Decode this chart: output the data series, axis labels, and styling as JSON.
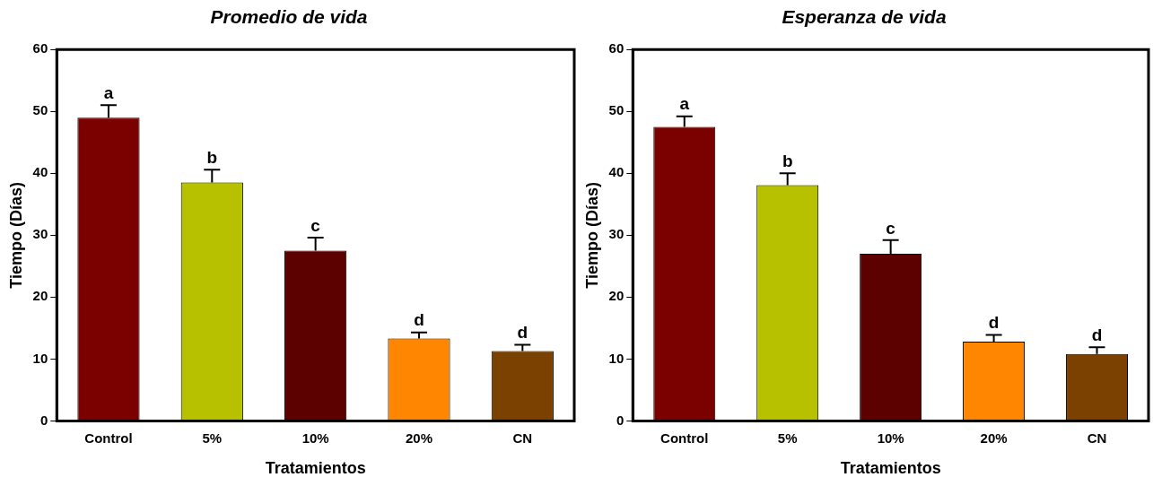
{
  "chart_data": [
    {
      "type": "bar",
      "title": "Promedio de vida",
      "xlabel": "Tratamientos",
      "ylabel": "Tiempo (Días)",
      "categories": [
        "Control",
        "5%",
        "10%",
        "20%",
        "CN"
      ],
      "values": [
        49,
        38.5,
        27.5,
        13.3,
        11.3
      ],
      "colors": [
        "#7b0000",
        "#b8c100",
        "#5c0000",
        "#ff8600",
        "#7a4100"
      ],
      "errors": [
        [
          49,
          51
        ],
        [
          38.5,
          40.6
        ],
        [
          27.5,
          29.6
        ],
        [
          13.3,
          14.3
        ],
        [
          11.3,
          12.3
        ]
      ],
      "ylim": [
        0,
        60
      ],
      "yticks": [
        0,
        10,
        20,
        30,
        40,
        50,
        60
      ],
      "grid": false,
      "legend": false,
      "annotations": [
        {
          "text": "a",
          "x": "Control",
          "y": 51
        },
        {
          "text": "b",
          "x": "5%",
          "y": 40.6
        },
        {
          "text": "c",
          "x": "10%",
          "y": 29.6
        },
        {
          "text": "d",
          "x": "20%",
          "y": 14.3
        },
        {
          "text": "d",
          "x": "CN",
          "y": 12.3
        }
      ]
    },
    {
      "type": "bar",
      "title": "Esperanza de vida",
      "xlabel": "Tratamientos",
      "ylabel": "Tiempo (Días)",
      "categories": [
        "Control",
        "5%",
        "10%",
        "20%",
        "CN"
      ],
      "values": [
        47.5,
        38.1,
        27,
        12.8,
        10.8
      ],
      "colors": [
        "#7b0000",
        "#b8c100",
        "#5c0000",
        "#ff8600",
        "#7a4100"
      ],
      "errors": [
        [
          47.5,
          49.2
        ],
        [
          38.1,
          40
        ],
        [
          27,
          29.2
        ],
        [
          12.8,
          13.9
        ],
        [
          10.8,
          11.9
        ]
      ],
      "ylim": [
        0,
        60
      ],
      "yticks": [
        0,
        10,
        20,
        30,
        40,
        50,
        60
      ],
      "grid": false,
      "legend": false,
      "annotations": [
        {
          "text": "a",
          "x": "Control",
          "y": 49.2
        },
        {
          "text": "b",
          "x": "5%",
          "y": 40
        },
        {
          "text": "c",
          "x": "10%",
          "y": 29.2
        },
        {
          "text": "d",
          "x": "20%",
          "y": 13.9
        },
        {
          "text": "d",
          "x": "CN",
          "y": 11.9
        }
      ]
    }
  ]
}
